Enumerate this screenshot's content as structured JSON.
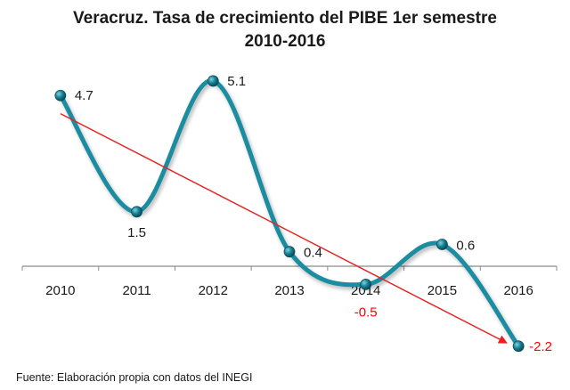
{
  "chart_data": {
    "type": "line",
    "title_line1": "Veracruz. Tasa de crecimiento del PIBE 1er semestre",
    "title_line2": "2010-2016",
    "categories": [
      "2010",
      "2011",
      "2012",
      "2013",
      "2014",
      "2015",
      "2016"
    ],
    "series": [
      {
        "values": [
          4.7,
          1.5,
          5.1,
          0.4,
          -0.5,
          0.6,
          -2.2
        ],
        "color": "#1a8ca0"
      }
    ],
    "data_labels": [
      "4.7",
      "1.5",
      "5.1",
      "0.4",
      "-0.5",
      "0.6",
      "-2.2"
    ],
    "negative_label_color": "#ff0000",
    "trendline": {
      "start": 4.2,
      "end": -2.1,
      "color": "#e82020",
      "arrow": true
    },
    "smooth": true,
    "grid": false,
    "legend": false,
    "ylim": [
      -2.6,
      5.6
    ]
  },
  "source": "Fuente: Elaboración propia con datos del INEGI"
}
